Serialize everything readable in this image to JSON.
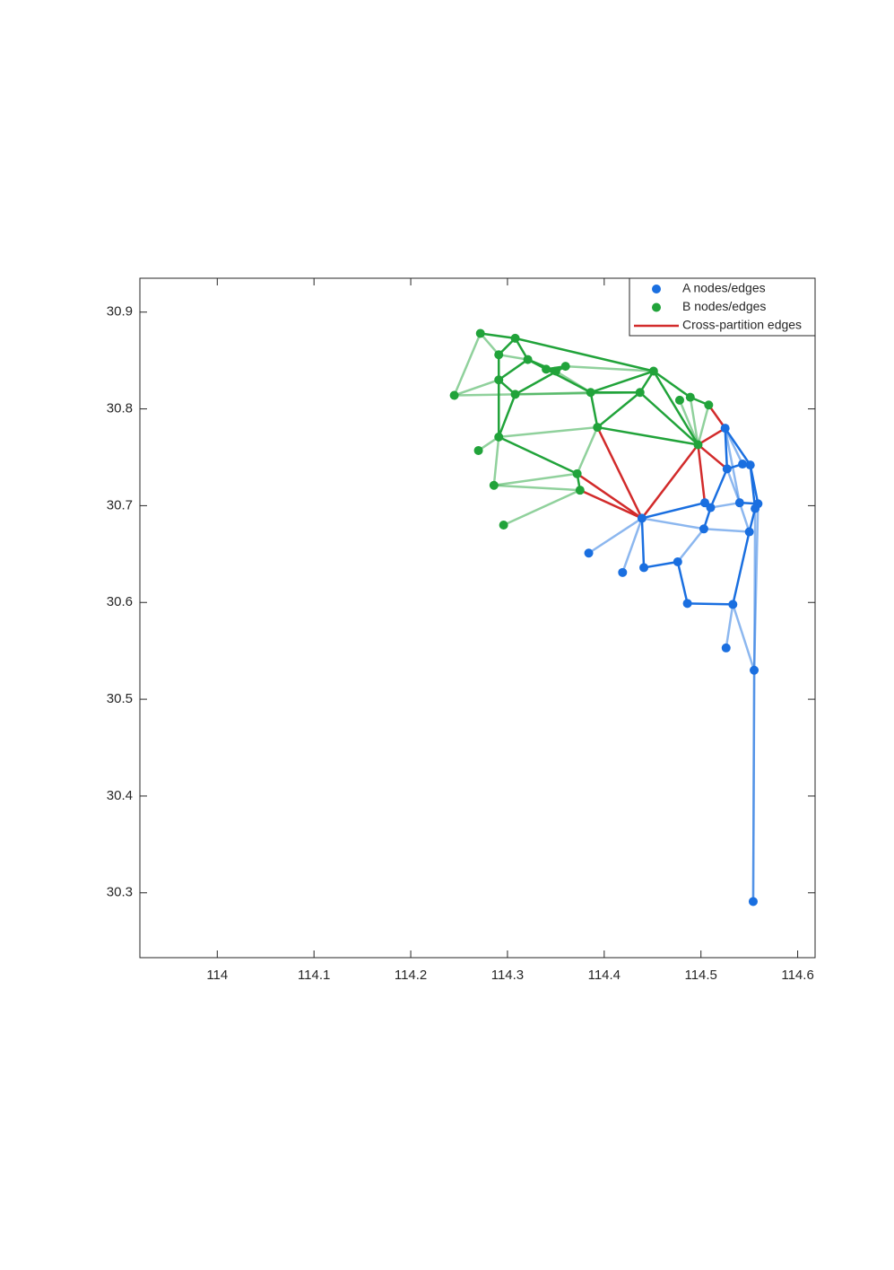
{
  "chart_data": {
    "type": "network",
    "xlim": [
      113.92,
      114.618
    ],
    "ylim": [
      30.233,
      30.935
    ],
    "xticks": [
      114,
      114.1,
      114.2,
      114.3,
      114.4,
      114.5,
      114.6
    ],
    "yticks": [
      30.3,
      30.4,
      30.5,
      30.6,
      30.7,
      30.8,
      30.9
    ],
    "legend": "upper right",
    "series": [
      {
        "name": "A nodes/edges",
        "color": "#1a6fe0",
        "x": [
          114.525,
          114.527,
          114.543,
          114.551,
          114.504,
          114.51,
          114.54,
          114.559,
          114.556,
          114.439,
          114.503,
          114.55,
          114.384,
          114.419,
          114.441,
          114.476,
          114.486,
          114.533,
          114.526,
          114.555,
          114.554
        ],
        "y": [
          30.78,
          30.738,
          30.743,
          30.742,
          30.703,
          30.698,
          30.703,
          30.702,
          30.697,
          30.687,
          30.676,
          30.673,
          30.651,
          30.631,
          30.636,
          30.642,
          30.599,
          30.598,
          30.553,
          30.53,
          30.291
        ],
        "edges": [
          [
            0,
            1
          ],
          [
            0,
            3
          ],
          [
            1,
            2
          ],
          [
            2,
            3
          ],
          [
            1,
            5
          ],
          [
            3,
            8
          ],
          [
            3,
            7
          ],
          [
            9,
            4
          ],
          [
            4,
            5
          ],
          [
            9,
            14
          ],
          [
            14,
            15
          ],
          [
            6,
            7
          ],
          [
            8,
            11
          ],
          [
            11,
            17
          ],
          [
            17,
            16
          ],
          [
            16,
            15
          ],
          [
            5,
            10
          ]
        ],
        "light_edges": [
          [
            9,
            10
          ],
          [
            15,
            10
          ],
          [
            10,
            11
          ],
          [
            5,
            6
          ],
          [
            17,
            18
          ],
          [
            17,
            19
          ],
          [
            7,
            19
          ],
          [
            19,
            20
          ],
          [
            8,
            20
          ],
          [
            9,
            12
          ],
          [
            9,
            13
          ],
          [
            1,
            6
          ],
          [
            0,
            6
          ],
          [
            6,
            11
          ],
          [
            0,
            2
          ]
        ]
      },
      {
        "name": "B nodes/edges",
        "color": "#21a33a",
        "x": [
          114.272,
          114.308,
          114.291,
          114.321,
          114.34,
          114.35,
          114.36,
          114.451,
          114.245,
          114.291,
          114.308,
          114.386,
          114.437,
          114.478,
          114.489,
          114.508,
          114.393,
          114.497,
          114.291,
          114.27,
          114.372,
          114.286,
          114.375,
          114.296
        ],
        "y": [
          30.878,
          30.873,
          30.856,
          30.851,
          30.841,
          30.839,
          30.844,
          30.839,
          30.814,
          30.83,
          30.815,
          30.817,
          30.817,
          30.809,
          30.812,
          30.804,
          30.781,
          30.763,
          30.771,
          30.757,
          30.733,
          30.721,
          30.716,
          30.68
        ],
        "edges": [
          [
            0,
            1
          ],
          [
            1,
            7
          ],
          [
            1,
            3
          ],
          [
            1,
            2
          ],
          [
            2,
            9
          ],
          [
            3,
            5
          ],
          [
            3,
            11
          ],
          [
            9,
            10
          ],
          [
            9,
            18
          ],
          [
            9,
            3
          ],
          [
            10,
            18
          ],
          [
            10,
            6
          ],
          [
            4,
            6
          ],
          [
            4,
            5
          ],
          [
            11,
            12
          ],
          [
            11,
            16
          ],
          [
            11,
            7
          ],
          [
            12,
            7
          ],
          [
            12,
            16
          ],
          [
            12,
            17
          ],
          [
            7,
            17
          ],
          [
            7,
            14
          ],
          [
            14,
            15
          ],
          [
            16,
            17
          ],
          [
            18,
            20
          ],
          [
            20,
            22
          ]
        ],
        "light_edges": [
          [
            2,
            3
          ],
          [
            6,
            7
          ],
          [
            10,
            11
          ],
          [
            14,
            17
          ],
          [
            13,
            17
          ],
          [
            15,
            17
          ],
          [
            18,
            16
          ],
          [
            18,
            21
          ],
          [
            21,
            20
          ],
          [
            21,
            22
          ],
          [
            22,
            23
          ],
          [
            20,
            16
          ],
          [
            18,
            19
          ],
          [
            8,
            0
          ],
          [
            8,
            9
          ],
          [
            8,
            10
          ],
          [
            10,
            12
          ],
          [
            5,
            11
          ],
          [
            0,
            2
          ]
        ]
      },
      {
        "name": "Cross-partition edges",
        "color": "#d22b2b",
        "edges": [
          [
            16,
            9
          ],
          [
            17,
            9
          ],
          [
            22,
            9
          ],
          [
            20,
            9
          ],
          [
            17,
            4
          ],
          [
            17,
            0
          ],
          [
            17,
            1
          ],
          [
            15,
            0
          ]
        ]
      }
    ]
  }
}
